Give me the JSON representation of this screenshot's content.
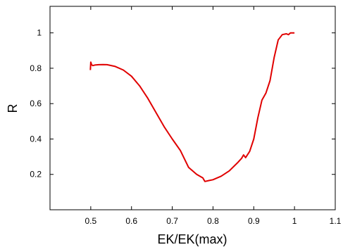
{
  "chart_data": {
    "type": "line",
    "title": "",
    "xlabel": "EK/EK(max)",
    "ylabel": "R",
    "xlim": [
      0.4,
      1.1
    ],
    "ylim": [
      0.0,
      1.15
    ],
    "xticks": [
      0.5,
      0.6,
      0.7,
      0.8,
      0.9,
      1.0,
      1.1
    ],
    "xtick_labels": [
      "0.5",
      "0.6",
      "0.7",
      "0.8",
      "0.9",
      "1",
      "1.1"
    ],
    "yticks": [
      0.2,
      0.4,
      0.6,
      0.8,
      1.0
    ],
    "ytick_labels": [
      "0.2",
      "0.4",
      "0.6",
      "0.8",
      "1"
    ],
    "grid": false,
    "legend": "none",
    "series": [
      {
        "color": "#e00000",
        "x": [
          0.499,
          0.5,
          0.502,
          0.505,
          0.51,
          0.52,
          0.53,
          0.54,
          0.56,
          0.58,
          0.6,
          0.62,
          0.64,
          0.66,
          0.68,
          0.7,
          0.72,
          0.74,
          0.76,
          0.775,
          0.78,
          0.79,
          0.8,
          0.82,
          0.84,
          0.86,
          0.87,
          0.875,
          0.88,
          0.89,
          0.9,
          0.91,
          0.92,
          0.93,
          0.94,
          0.95,
          0.96,
          0.97,
          0.98,
          0.985,
          0.99,
          1.0
        ],
        "y": [
          0.79,
          0.835,
          0.82,
          0.815,
          0.818,
          0.82,
          0.821,
          0.82,
          0.81,
          0.79,
          0.755,
          0.7,
          0.63,
          0.55,
          0.47,
          0.4,
          0.335,
          0.24,
          0.2,
          0.18,
          0.16,
          0.165,
          0.17,
          0.19,
          0.22,
          0.265,
          0.29,
          0.31,
          0.295,
          0.33,
          0.4,
          0.52,
          0.62,
          0.66,
          0.73,
          0.86,
          0.96,
          0.99,
          0.995,
          0.99,
          1.0,
          1.0
        ]
      }
    ]
  }
}
